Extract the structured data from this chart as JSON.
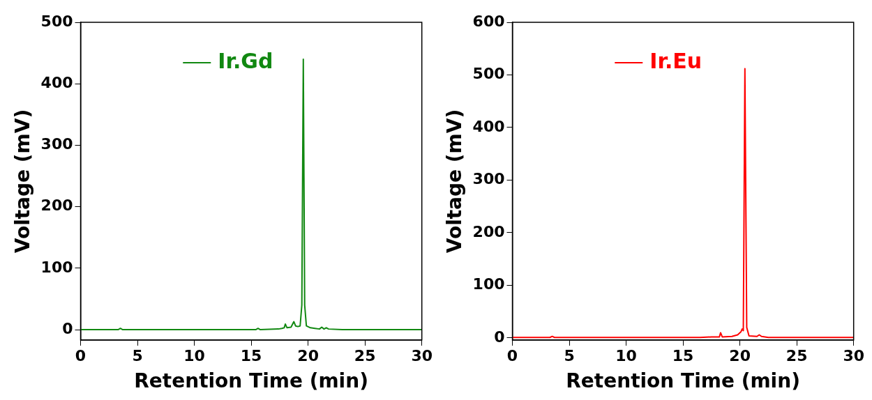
{
  "chart_data": [
    {
      "type": "line",
      "xlabel": "Retention Time (min)",
      "ylabel": "Voltage (mV)",
      "xlim": [
        0,
        30
      ],
      "xticks": [
        0,
        5,
        10,
        15,
        20,
        25,
        30
      ],
      "ylim": [
        -17,
        500
      ],
      "yticks": [
        0,
        100,
        200,
        300,
        400,
        500
      ],
      "grid": false,
      "legend": "top left",
      "marker": "none",
      "series": [
        {
          "name": "Ir.Gd",
          "color": "#118811",
          "x": [
            0,
            3.3,
            3.5,
            3.7,
            10,
            15.4,
            15.6,
            15.8,
            17.4,
            17.7,
            17.9,
            18.0,
            18.15,
            18.5,
            18.75,
            18.9,
            19.1,
            19.3,
            19.45,
            19.58,
            19.7,
            19.85,
            20.2,
            20.6,
            21.0,
            21.2,
            21.4,
            21.6,
            21.8,
            23,
            25,
            30
          ],
          "values": [
            0,
            0,
            2,
            0,
            0,
            0,
            2,
            0,
            1,
            2,
            3,
            9,
            3,
            4,
            13,
            6,
            5,
            6,
            40,
            440,
            40,
            6,
            3,
            2,
            1,
            4,
            1,
            3,
            1,
            0,
            0,
            0
          ]
        }
      ]
    },
    {
      "type": "line",
      "xlabel": "Retention Time (min)",
      "ylabel": "Voltage (mV)",
      "xlim": [
        0,
        30
      ],
      "xticks": [
        0,
        5,
        10,
        15,
        20,
        25,
        30
      ],
      "ylim": [
        -4,
        600
      ],
      "yticks": [
        0,
        100,
        200,
        300,
        400,
        500,
        600
      ],
      "grid": false,
      "legend": "top left",
      "marker": "none",
      "series": [
        {
          "name": "Ir.Eu",
          "color": "#ff0000",
          "x": [
            0,
            3.3,
            3.5,
            3.7,
            10,
            16.5,
            17.5,
            18.2,
            18.3,
            18.45,
            19.3,
            19.8,
            20.1,
            20.2,
            20.3,
            20.44,
            20.6,
            20.8,
            21.5,
            21.7,
            21.9,
            22.5,
            30
          ],
          "values": [
            1,
            1,
            3,
            1,
            1,
            1,
            2,
            2,
            10,
            2,
            3,
            6,
            12,
            17,
            14,
            512,
            20,
            4,
            3,
            6,
            3,
            1,
            1
          ]
        }
      ]
    }
  ]
}
